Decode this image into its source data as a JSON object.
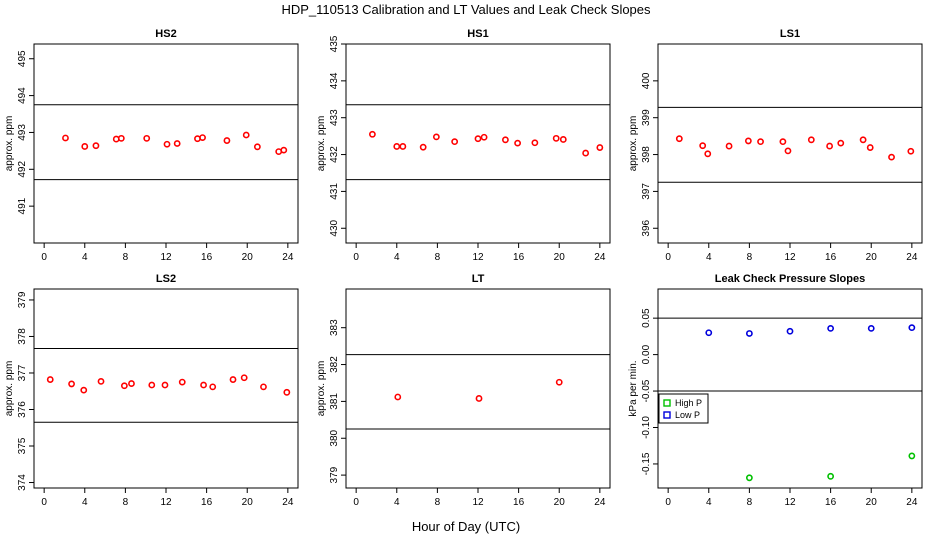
{
  "title": "HDP_110513  Calibration and LT Values and Leak Check Slopes",
  "xlabel": "Hour of Day (UTC)",
  "chart_data": [
    {
      "type": "scatter",
      "title": "HS2",
      "ylabel": "approx. ppm",
      "xlim": [
        -1,
        25
      ],
      "ylim": [
        490,
        495.4
      ],
      "xticks": [
        "0",
        "4",
        "8",
        "12",
        "16",
        "20",
        "24"
      ],
      "yticks": [
        "491",
        "492",
        "493",
        "494",
        "495"
      ],
      "hlines": [
        493.75,
        491.72
      ],
      "series": [
        {
          "color": "#ff0000",
          "marker": "circle",
          "x": [
            2.1,
            4,
            5.1,
            7.1,
            7.6,
            10.1,
            12.1,
            13.1,
            15.1,
            15.6,
            18,
            19.9,
            21,
            23.1,
            23.6
          ],
          "y": [
            492.85,
            492.62,
            492.64,
            492.82,
            492.84,
            492.84,
            492.68,
            492.7,
            492.83,
            492.86,
            492.78,
            492.93,
            492.61,
            492.48,
            492.52
          ]
        }
      ]
    },
    {
      "type": "scatter",
      "title": "HS1",
      "ylabel": "approx. ppm",
      "xlim": [
        -1,
        25
      ],
      "ylim": [
        429.6,
        435
      ],
      "xticks": [
        "0",
        "4",
        "8",
        "12",
        "16",
        "20",
        "24"
      ],
      "yticks": [
        "430",
        "431",
        "432",
        "433",
        "434",
        "435"
      ],
      "hlines": [
        433.35,
        431.32
      ],
      "series": [
        {
          "color": "#ff0000",
          "marker": "circle",
          "x": [
            1.6,
            4,
            4.6,
            6.6,
            7.9,
            9.7,
            12,
            12.6,
            14.7,
            15.9,
            17.6,
            19.7,
            20.4,
            22.6,
            24
          ],
          "y": [
            432.55,
            432.22,
            432.22,
            432.2,
            432.48,
            432.35,
            432.43,
            432.47,
            432.4,
            432.31,
            432.32,
            432.44,
            432.41,
            432.04,
            432.19
          ]
        }
      ]
    },
    {
      "type": "scatter",
      "title": "LS1",
      "ylabel": "approx. ppm",
      "xlim": [
        -1,
        25
      ],
      "ylim": [
        395.6,
        401
      ],
      "xticks": [
        "0",
        "4",
        "8",
        "12",
        "16",
        "20",
        "24"
      ],
      "yticks": [
        "396",
        "397",
        "398",
        "399",
        "400"
      ],
      "hlines": [
        399.28,
        397.25
      ],
      "series": [
        {
          "color": "#ff0000",
          "marker": "circle",
          "x": [
            1.1,
            3.4,
            3.9,
            6,
            7.9,
            9.1,
            11.3,
            11.8,
            14.1,
            15.9,
            17,
            19.2,
            19.9,
            22,
            23.9
          ],
          "y": [
            398.43,
            398.24,
            398.02,
            398.23,
            398.37,
            398.35,
            398.35,
            398.1,
            398.4,
            398.23,
            398.31,
            398.4,
            398.19,
            397.93,
            398.09
          ]
        }
      ]
    },
    {
      "type": "scatter",
      "title": "LS2",
      "ylabel": "approx. ppm",
      "xlim": [
        -1,
        25
      ],
      "ylim": [
        373.85,
        379.3
      ],
      "xticks": [
        "0",
        "4",
        "8",
        "12",
        "16",
        "20",
        "24"
      ],
      "yticks": [
        "374",
        "375",
        "376",
        "377",
        "378",
        "379"
      ],
      "hlines": [
        377.67,
        375.65
      ],
      "series": [
        {
          "color": "#ff0000",
          "marker": "circle",
          "x": [
            0.6,
            2.7,
            3.9,
            5.6,
            7.9,
            8.6,
            10.6,
            11.9,
            13.6,
            15.7,
            16.6,
            18.6,
            19.7,
            21.6,
            23.9
          ],
          "y": [
            376.82,
            376.7,
            376.53,
            376.77,
            376.65,
            376.71,
            376.67,
            376.67,
            376.75,
            376.67,
            376.62,
            376.82,
            376.87,
            376.62,
            376.47
          ]
        }
      ]
    },
    {
      "type": "scatter",
      "title": "LT",
      "ylabel": "approx. ppm",
      "xlim": [
        -1,
        25
      ],
      "ylim": [
        378.65,
        384.05
      ],
      "xticks": [
        "0",
        "4",
        "8",
        "12",
        "16",
        "20",
        "24"
      ],
      "yticks": [
        "379",
        "380",
        "381",
        "382",
        "383"
      ],
      "hlines": [
        382.27,
        380.25
      ],
      "series": [
        {
          "color": "#ff0000",
          "marker": "circle",
          "x": [
            4.1,
            12.1,
            20
          ],
          "y": [
            381.12,
            381.08,
            381.52
          ]
        }
      ]
    },
    {
      "type": "scatter",
      "title": "Leak Check Pressure Slopes",
      "ylabel": "kPa per min.",
      "xlim": [
        -1,
        25
      ],
      "ylim": [
        -0.183,
        0.09
      ],
      "xticks": [
        "0",
        "4",
        "8",
        "12",
        "16",
        "20",
        "24"
      ],
      "yticks": [
        "0.05",
        "0.00",
        "-0.05",
        "-0.10",
        "-0.15"
      ],
      "hlines": [
        0.05,
        -0.05
      ],
      "legend": {
        "position": "left",
        "entries": [
          "High P",
          "Low P"
        ]
      },
      "series": [
        {
          "name": "High P",
          "color": "#00c000",
          "marker": "circle",
          "x": [
            8,
            16,
            24
          ],
          "y": [
            -0.169,
            -0.167,
            -0.139
          ]
        },
        {
          "name": "Low P",
          "color": "#0000dd",
          "marker": "circle",
          "x": [
            4,
            8,
            12,
            16,
            20,
            24
          ],
          "y": [
            0.03,
            0.029,
            0.032,
            0.036,
            0.036,
            0.037
          ]
        }
      ]
    }
  ]
}
